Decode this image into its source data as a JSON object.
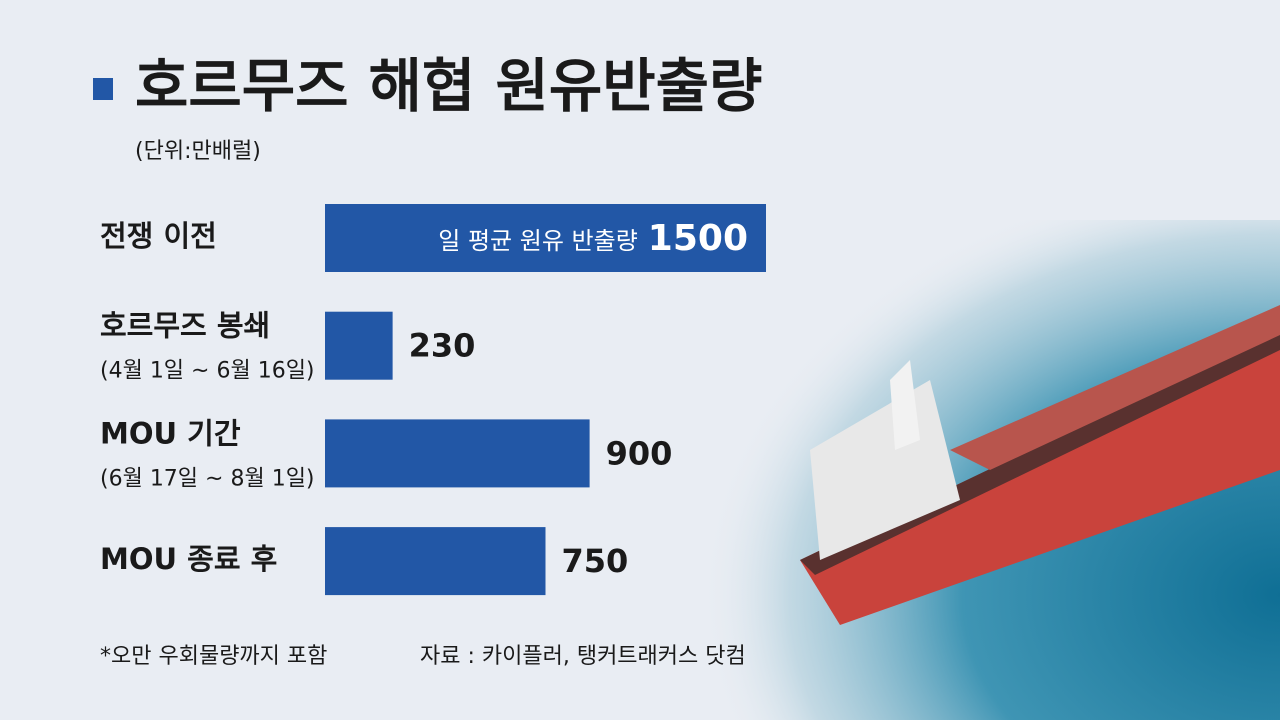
{
  "chart_data": {
    "type": "bar",
    "orientation": "horizontal",
    "title": "호르무즈 해협 원유반출량",
    "subtitle": "(단위:만배럴)",
    "categories": [
      "전쟁 이전",
      "호르무즈 봉쇄",
      "MOU 기간",
      "MOU 종료 후"
    ],
    "subcategories": [
      null,
      "(4월 1일 ~ 6월 16일)",
      "(6월 17일 ~ 8월 1일)",
      null
    ],
    "values": [
      1500,
      230,
      900,
      750
    ],
    "color": "#2257a6",
    "annotation": "일 평균 원유 반출량",
    "footnote": "*오만 우회물량까지 포함",
    "source": "자료 : 카이플러, 탱커트래커스 닷컴"
  }
}
